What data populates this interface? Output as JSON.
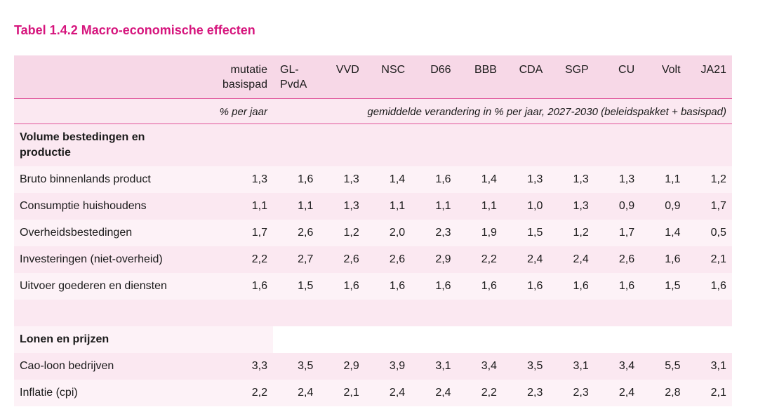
{
  "title": "Tabel 1.4.2 Macro-economische effecten",
  "header": {
    "basis_line1": "mutatie",
    "basis_line2": "basispad",
    "parties": [
      {
        "line1": "GL-",
        "line2": "PvdA"
      },
      {
        "line1": "VVD",
        "line2": ""
      },
      {
        "line1": "NSC",
        "line2": ""
      },
      {
        "line1": "D66",
        "line2": ""
      },
      {
        "line1": "BBB",
        "line2": ""
      },
      {
        "line1": "CDA",
        "line2": ""
      },
      {
        "line1": "SGP",
        "line2": ""
      },
      {
        "line1": "CU",
        "line2": ""
      },
      {
        "line1": "Volt",
        "line2": ""
      },
      {
        "line1": "JA21",
        "line2": ""
      }
    ]
  },
  "units": {
    "basis": "% per jaar",
    "parties": "gemiddelde verandering in % per jaar, 2027-2030 (beleidspakket + basispad)"
  },
  "sections": [
    {
      "title_line1": "Volume bestedingen en",
      "title_line2": "productie",
      "rows": [
        {
          "label": "Bruto binnenlands product",
          "values": [
            "1,3",
            "1,6",
            "1,3",
            "1,4",
            "1,6",
            "1,4",
            "1,3",
            "1,3",
            "1,3",
            "1,1",
            "1,2"
          ]
        },
        {
          "label": "Consumptie huishoudens",
          "values": [
            "1,1",
            "1,1",
            "1,3",
            "1,1",
            "1,1",
            "1,1",
            "1,0",
            "1,3",
            "0,9",
            "0,9",
            "1,7"
          ]
        },
        {
          "label": "Overheidsbestedingen",
          "values": [
            "1,7",
            "2,6",
            "1,2",
            "2,0",
            "2,3",
            "1,9",
            "1,5",
            "1,2",
            "1,7",
            "1,4",
            "0,5"
          ]
        },
        {
          "label": "Investeringen (niet-overheid)",
          "values": [
            "2,2",
            "2,7",
            "2,6",
            "2,6",
            "2,9",
            "2,2",
            "2,4",
            "2,4",
            "2,6",
            "1,6",
            "2,1"
          ]
        },
        {
          "label": "Uitvoer goederen en diensten",
          "values": [
            "1,6",
            "1,5",
            "1,6",
            "1,6",
            "1,6",
            "1,6",
            "1,6",
            "1,6",
            "1,6",
            "1,5",
            "1,6"
          ]
        }
      ]
    },
    {
      "title_line1": "Lonen en prijzen",
      "title_line2": "",
      "rows": [
        {
          "label": "Cao-loon bedrijven",
          "values": [
            "3,3",
            "3,5",
            "2,9",
            "3,9",
            "3,1",
            "3,4",
            "3,5",
            "3,1",
            "3,4",
            "5,5",
            "3,1"
          ]
        },
        {
          "label": "Inflatie (cpi)",
          "values": [
            "2,2",
            "2,4",
            "2,1",
            "2,4",
            "2,4",
            "2,2",
            "2,3",
            "2,3",
            "2,4",
            "2,8",
            "2,1"
          ]
        }
      ]
    }
  ],
  "colors": {
    "accent": "#d6157d",
    "rule": "#e0559b",
    "dark_row": "#f7d8e7",
    "mid_row": "#fbe8f1",
    "light_row": "#fdf2f7"
  }
}
